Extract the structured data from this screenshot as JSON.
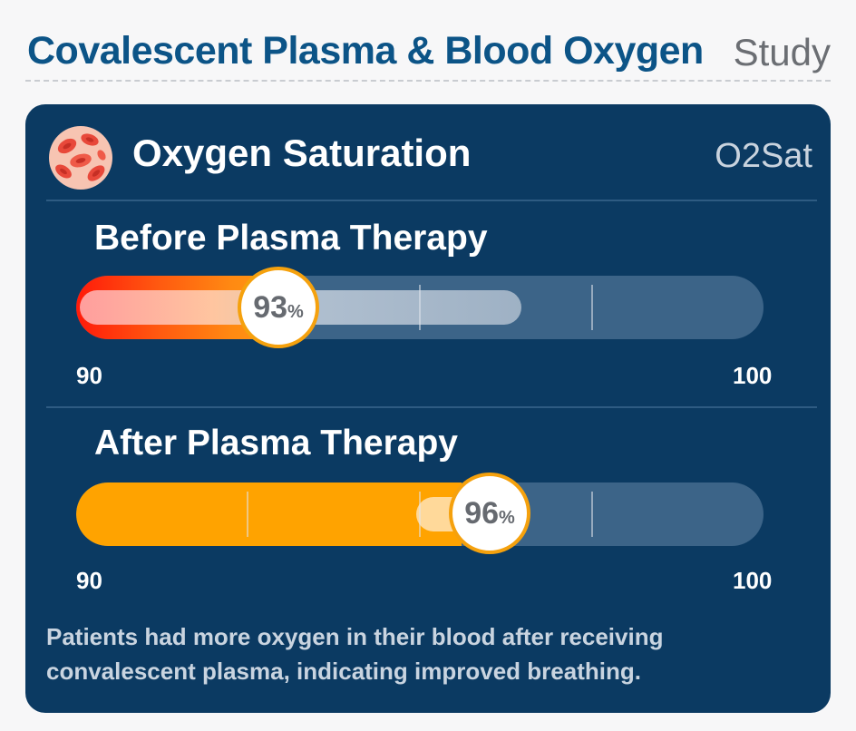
{
  "header": {
    "title": "Covalescent Plasma & Blood Oxygen",
    "tag": "Study"
  },
  "card": {
    "icon": "red-blood-cells-icon",
    "title": "Oxygen Saturation",
    "code": "O2Sat"
  },
  "before": {
    "title": "Before Plasma Therapy",
    "value": "93",
    "unit": "%",
    "min_label": "90",
    "max_label": "100",
    "color": "#ff3b10"
  },
  "after": {
    "title": "After Plasma Therapy",
    "value": "96",
    "unit": "%",
    "min_label": "90",
    "max_label": "100",
    "color": "#ffa300"
  },
  "caption": "Patients had more oxygen in their blood after receiving convalescent plasma, indicating improved breathing.",
  "colors": {
    "title": "#0c5487",
    "card_background": "#0b3a62",
    "knob_border": "#f5a10d"
  }
}
